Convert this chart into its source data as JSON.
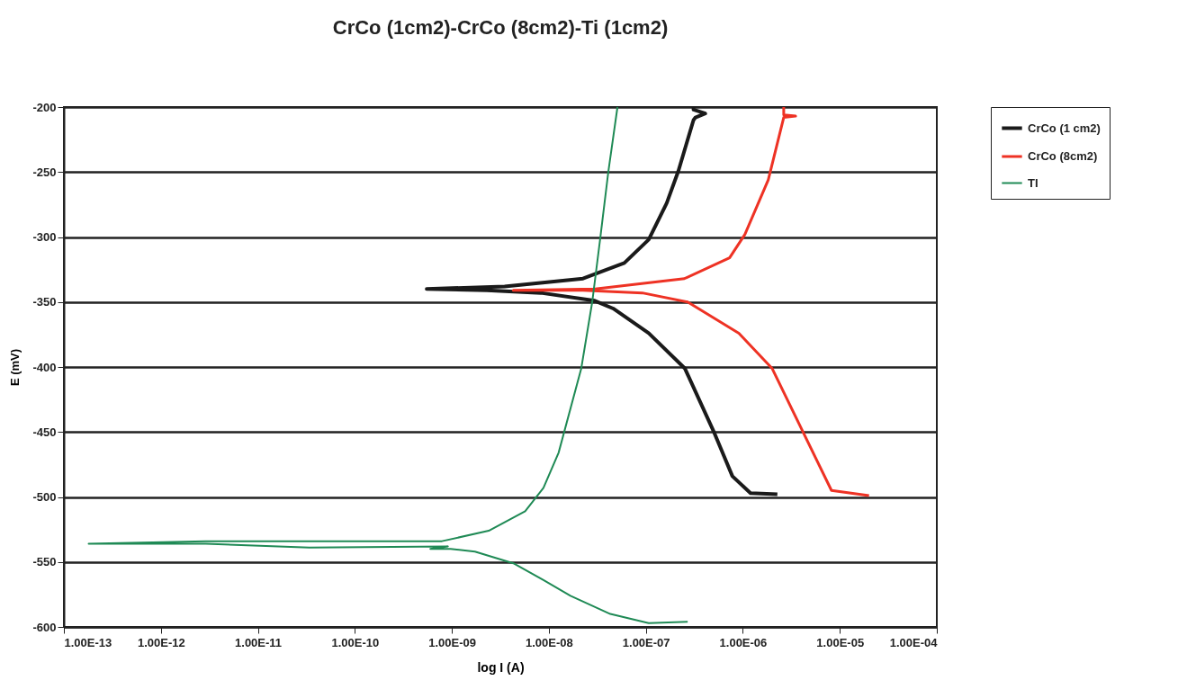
{
  "chart_data": {
    "type": "line",
    "title": "CrCo (1cm2)-CrCo (8cm2)-Ti (1cm2)",
    "xlabel": "log I (A)",
    "ylabel": "E (mV)",
    "log": "x",
    "grid": "y",
    "legend": "right",
    "line_style": "solid",
    "marker": "none",
    "xlim": [
      1e-13,
      0.0001
    ],
    "xticks": [
      {
        "value": 1e-13,
        "label": "1.00E-13"
      },
      {
        "value": 1e-12,
        "label": "1.00E-12"
      },
      {
        "value": 1e-11,
        "label": "1.00E-11"
      },
      {
        "value": 1e-10,
        "label": "1.00E-10"
      },
      {
        "value": 1e-09,
        "label": "1.00E-09"
      },
      {
        "value": 1e-08,
        "label": "1.00E-08"
      },
      {
        "value": 1e-07,
        "label": "1.00E-07"
      },
      {
        "value": 1e-06,
        "label": "1.00E-06"
      },
      {
        "value": 1e-05,
        "label": "1.00E-05"
      },
      {
        "value": 0.0001,
        "label": "1.00E-04"
      }
    ],
    "ylim": [
      -600,
      -200
    ],
    "yticks": [
      -600,
      -550,
      -500,
      -450,
      -400,
      -350,
      -300,
      -250,
      -200
    ],
    "series": [
      {
        "name": "CrCo (1 cm2)",
        "color": "#1a1a1a",
        "x": [
          2.27e-06,
          1.2e-06,
          7.8e-07,
          5.1e-07,
          2.52e-07,
          1.07e-07,
          4.6e-08,
          2.97e-08,
          8.3e-09,
          2.3e-09,
          5.5e-10,
          3.5e-09,
          2.25e-08,
          6e-08,
          1.07e-07,
          1.64e-07,
          2.17e-07,
          3.1e-07,
          3.25e-07,
          4.1e-07,
          3.1e-07,
          3.1e-07
        ],
        "values": [
          -498,
          -497,
          -484,
          -451,
          -401,
          -374,
          -355,
          -349,
          -343,
          -341,
          -340,
          -338,
          -332,
          -320,
          -302,
          -274,
          -249,
          -210,
          -208,
          -205,
          -202,
          -200
        ]
      },
      {
        "name": "CrCo (8cm2)",
        "color": "#ee3224",
        "x": [
          2e-05,
          8.2e-06,
          4.3e-06,
          2e-06,
          9.1e-07,
          2.7e-07,
          9.2e-08,
          2.25e-08,
          4.3e-09,
          3e-08,
          2.5e-07,
          7.3e-07,
          1.05e-06,
          1.83e-06,
          2.64e-06,
          3.5e-06,
          2.64e-06,
          2.64e-06
        ],
        "values": [
          -499,
          -495,
          -452,
          -401,
          -374,
          -350,
          -343,
          -341,
          -341,
          -340,
          -332,
          -316,
          -298,
          -256,
          -208,
          -207,
          -206,
          -200
        ]
      },
      {
        "name": "TI",
        "color": "#1f8a55",
        "x": [
          2.7e-07,
          1.07e-07,
          4.3e-08,
          1.67e-08,
          8.8e-09,
          4.3e-09,
          1.73e-09,
          9.7e-10,
          6e-10,
          9.1e-10,
          3.4e-11,
          2.9e-12,
          1.8e-13,
          2.9e-12,
          7.9e-10,
          2.4e-09,
          5.7e-09,
          8.8e-09,
          1.26e-08,
          2.16e-08,
          2.8e-08,
          3.4e-08,
          4.1e-08,
          5.1e-08
        ],
        "values": [
          -596,
          -597,
          -590,
          -576,
          -564,
          -551,
          -542,
          -540,
          -540,
          -538,
          -539,
          -536,
          -536,
          -534,
          -534,
          -526,
          -511,
          -493,
          -466,
          -401,
          -350,
          -300,
          -250,
          -200
        ]
      }
    ]
  }
}
